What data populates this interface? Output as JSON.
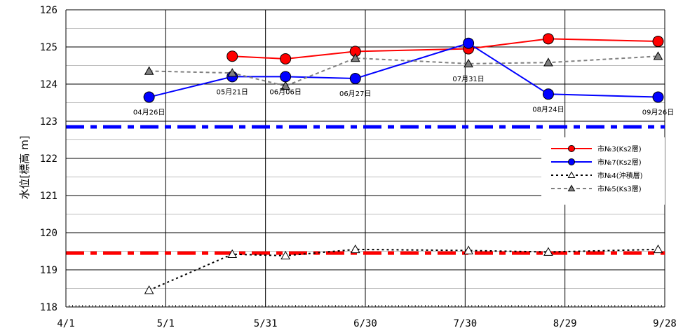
{
  "chart_data": {
    "type": "line",
    "title": "",
    "xlabel": "",
    "ylabel": "水位[標高 m]",
    "x_ticks": [
      "4/1",
      "5/1",
      "5/31",
      "6/30",
      "7/30",
      "8/29",
      "9/28"
    ],
    "x_tick_days": [
      0,
      30,
      60,
      90,
      120,
      150,
      180
    ],
    "ylim": [
      118,
      126
    ],
    "y_ticks": [
      118,
      119,
      120,
      121,
      122,
      123,
      124,
      125,
      126
    ],
    "minor_y_step": 0.5,
    "grid": true,
    "legend_position": "right",
    "series": [
      {
        "name": "市№3(Ks2層)",
        "color": "#ff0000",
        "marker": "circle",
        "marker_fill": "#ff0000",
        "line_style": "solid",
        "x": [
          null,
          "05/21",
          "06/06",
          "06/27",
          "07/31",
          "08/24",
          "09/26"
        ],
        "x_days": [
          null,
          50,
          66,
          87,
          121,
          145,
          178
        ],
        "y": [
          null,
          124.75,
          124.68,
          124.88,
          124.95,
          125.22,
          125.15
        ]
      },
      {
        "name": "市№7(Ks2層)",
        "color": "#0000ff",
        "marker": "circle",
        "marker_fill": "#0000ff",
        "line_style": "solid",
        "x": [
          "04/26",
          "05/21",
          "06/06",
          "06/27",
          "07/31",
          "08/24",
          "09/26"
        ],
        "x_days": [
          25,
          50,
          66,
          87,
          121,
          145,
          178
        ],
        "y": [
          123.65,
          124.2,
          124.2,
          124.15,
          125.1,
          123.73,
          123.65
        ]
      },
      {
        "name": "市№4(沖積層)",
        "color": "#000000",
        "marker": "triangle",
        "marker_fill": "#ffffff",
        "line_style": "dotted",
        "x": [
          "04/26",
          "05/21",
          "06/06",
          "06/27",
          "07/31",
          "08/24",
          "09/26"
        ],
        "x_days": [
          25,
          50,
          66,
          87,
          121,
          145,
          178
        ],
        "y": [
          118.45,
          119.42,
          119.38,
          119.55,
          119.52,
          119.48,
          119.55
        ]
      },
      {
        "name": "市№5(Ks3層)",
        "color": "#808080",
        "marker": "triangle",
        "marker_fill": "#808080",
        "line_style": "dashed",
        "x": [
          "04/26",
          "05/21",
          "06/06",
          "06/27",
          "07/31",
          "08/24",
          "09/26"
        ],
        "x_days": [
          25,
          50,
          66,
          87,
          121,
          145,
          178
        ],
        "y": [
          124.35,
          124.3,
          123.95,
          124.7,
          124.55,
          124.58,
          124.75
        ]
      }
    ],
    "reference_lines": [
      {
        "y": 122.85,
        "color": "#0000ff",
        "style": "dash-dot"
      },
      {
        "y": 119.45,
        "color": "#ff0000",
        "style": "dash-dot"
      }
    ],
    "annotations": [
      {
        "text": "04月26日",
        "x_days": 25,
        "y": 123.65,
        "series": 1
      },
      {
        "text": "05月21日",
        "x_days": 50,
        "y": 124.2,
        "series": 1
      },
      {
        "text": "06月06日",
        "x_days": 66,
        "y": 124.2,
        "series": 1
      },
      {
        "text": "06月27日",
        "x_days": 87,
        "y": 124.15,
        "series": 1
      },
      {
        "text": "07月31日",
        "x_days": 121,
        "y": 124.55,
        "series": 3
      },
      {
        "text": "08月24日",
        "x_days": 145,
        "y": 123.73,
        "series": 1
      },
      {
        "text": "09月26日",
        "x_days": 178,
        "y": 123.65,
        "series": 1
      }
    ]
  }
}
